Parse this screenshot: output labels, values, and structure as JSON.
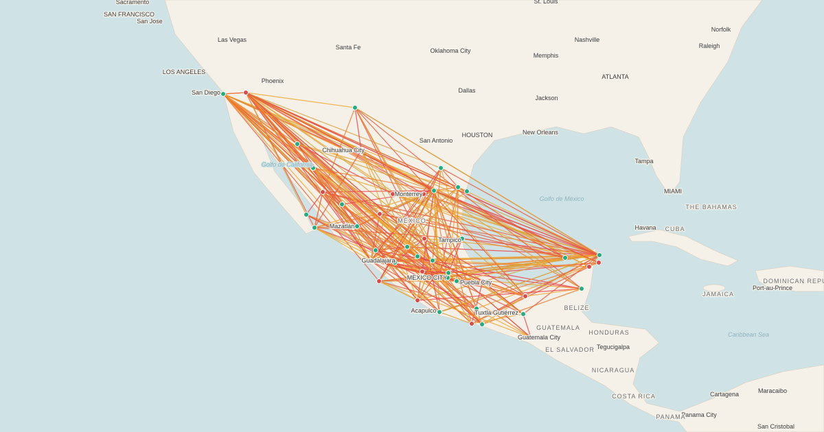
{
  "map": {
    "cities": [
      "Sacramento",
      "SAN FRANCISCO",
      "San Jose",
      "Las Vegas",
      "LOS ANGELES",
      "San Diego",
      "Phoenix",
      "Santa Fe",
      "Oklahoma City",
      "Dallas",
      "St. Louis",
      "Nashville",
      "Memphis",
      "Norfolk",
      "Raleigh",
      "ATLANTA",
      "Jackson",
      "HOUSTON",
      "New Orleans",
      "San Antonio",
      "Tampa",
      "MIAMI",
      "Havana",
      "Chihuahua City",
      "Monterrey",
      "Mazatlán",
      "Tampico",
      "Guadalajara",
      "MEXICO CITY",
      "Puebla City",
      "Acapulco",
      "Tuxtla Gutiérrez",
      "Guatemala City",
      "Tegucigalpa",
      "Panama City",
      "Cartagena",
      "Maracaibo",
      "San Cristobal",
      "Port-au-Prince"
    ],
    "countries": [
      "THE BAHAMAS",
      "CUBA",
      "MÉXICO",
      "BELIZE",
      "GUATEMALA",
      "HONDURAS",
      "EL SALVADOR",
      "NICARAGUA",
      "COSTA RICA",
      "PANAMA",
      "JAMAICA",
      "DOMINICAN REPUBLIC"
    ],
    "water": [
      "Golfo de California",
      "Golfo de México",
      "Caribbean Sea"
    ]
  }
}
